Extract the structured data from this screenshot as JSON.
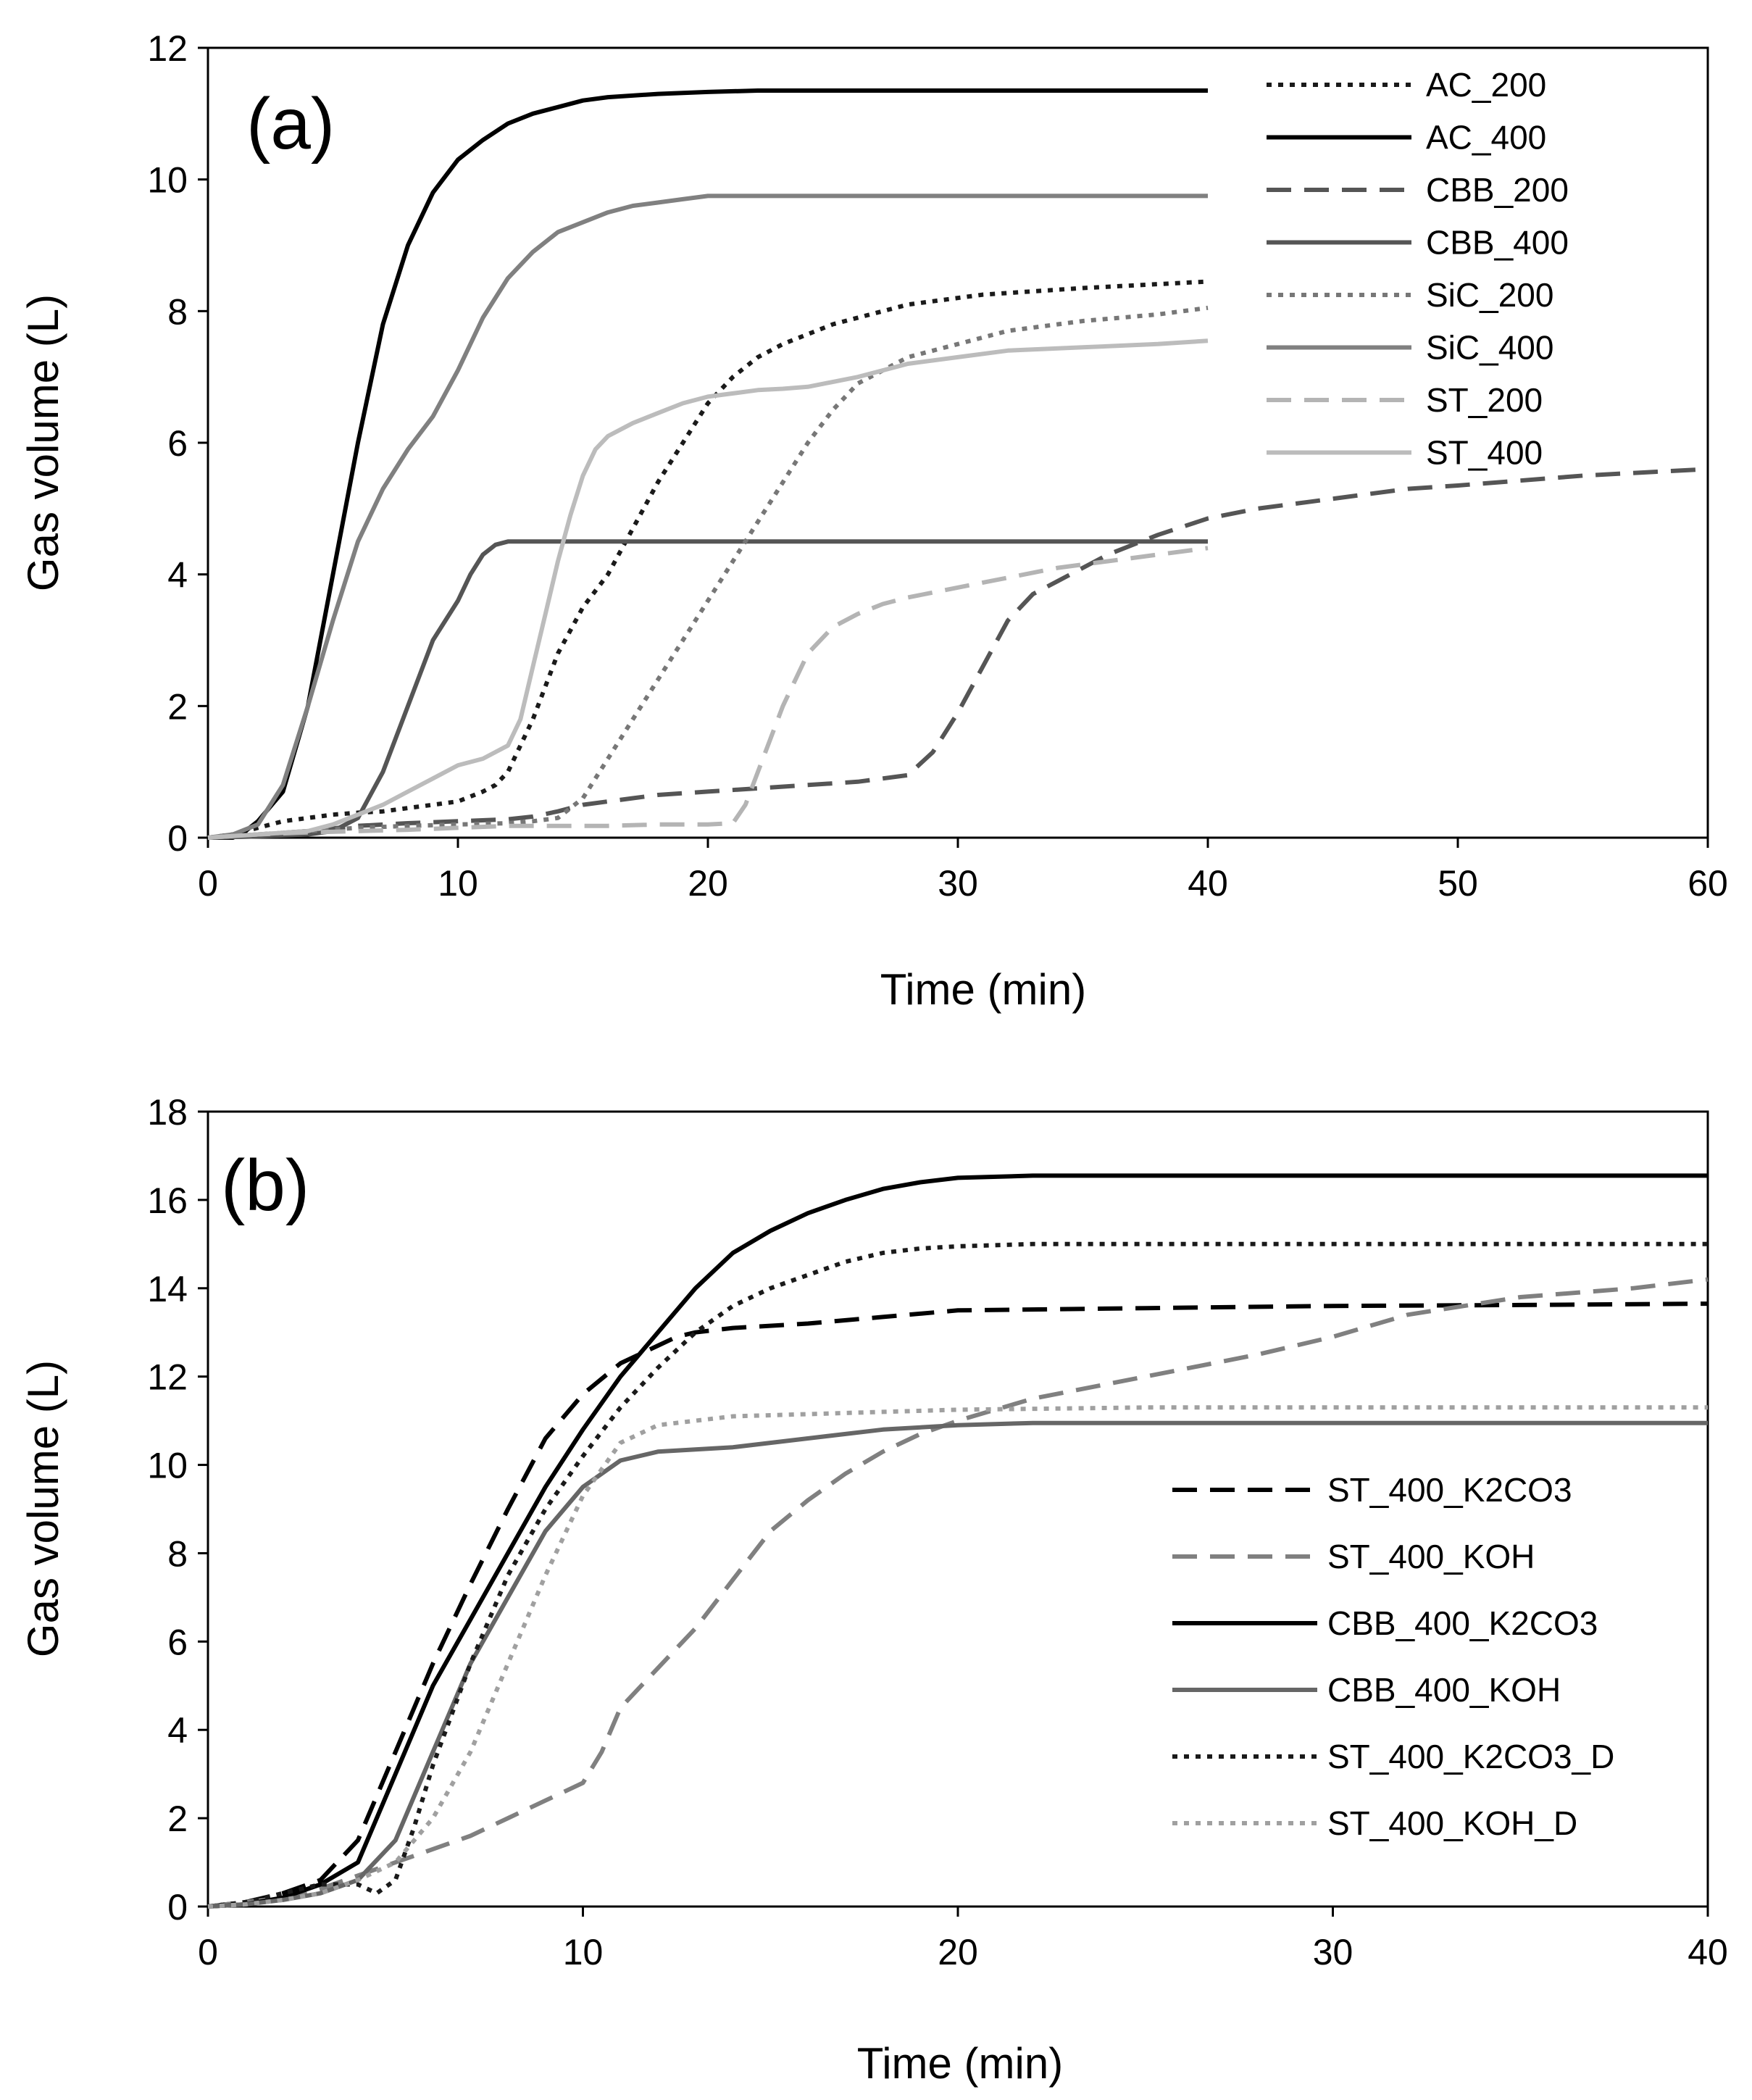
{
  "chart_data": [
    {
      "type": "line",
      "panel_label": "(a)",
      "xlabel": "Time (min)",
      "ylabel": "Gas volume (L)",
      "xlim": [
        0,
        60
      ],
      "ylim": [
        0,
        12
      ],
      "xticks": [
        0,
        10,
        20,
        30,
        40,
        50,
        60
      ],
      "yticks": [
        0,
        2,
        4,
        6,
        8,
        10,
        12
      ],
      "legend_position": "top-right",
      "series": [
        {
          "name": "AC_200",
          "color": "#1a1a1a",
          "dash": "dot",
          "x": [
            0,
            1,
            2,
            3,
            4,
            5,
            6,
            7,
            8,
            9,
            10,
            11,
            11.5,
            12,
            13,
            14,
            15,
            16,
            17,
            18,
            19,
            20,
            21,
            22,
            23,
            25,
            28,
            31,
            35,
            40
          ],
          "y": [
            0,
            0.05,
            0.15,
            0.25,
            0.3,
            0.35,
            0.38,
            0.4,
            0.45,
            0.5,
            0.55,
            0.7,
            0.8,
            1.0,
            1.8,
            2.8,
            3.5,
            4.0,
            4.7,
            5.4,
            6.0,
            6.6,
            7.0,
            7.3,
            7.5,
            7.8,
            8.1,
            8.25,
            8.35,
            8.45
          ]
        },
        {
          "name": "AC_400",
          "color": "#000000",
          "dash": "solid",
          "x": [
            0,
            1,
            1.5,
            2,
            3,
            4,
            5,
            6,
            7,
            8,
            9,
            10,
            11,
            12,
            13,
            14,
            15,
            16,
            18,
            20,
            22,
            25,
            30,
            35,
            40
          ],
          "y": [
            0,
            0,
            0.1,
            0.25,
            0.7,
            2.0,
            4.0,
            6.0,
            7.8,
            9.0,
            9.8,
            10.3,
            10.6,
            10.85,
            11.0,
            11.1,
            11.2,
            11.25,
            11.3,
            11.33,
            11.35,
            11.35,
            11.35,
            11.35,
            11.35
          ]
        },
        {
          "name": "CBB_200",
          "color": "#555555",
          "dash": "dash",
          "x": [
            0,
            2,
            4,
            6,
            8,
            10,
            12,
            13,
            14,
            15,
            16,
            17,
            18,
            20,
            22,
            24,
            26,
            28,
            29,
            30,
            31,
            32,
            33,
            34,
            35,
            36,
            38,
            40,
            42,
            44,
            46,
            48,
            50,
            55,
            60
          ],
          "y": [
            0,
            0.05,
            0.1,
            0.18,
            0.22,
            0.25,
            0.28,
            0.32,
            0.4,
            0.5,
            0.55,
            0.6,
            0.65,
            0.7,
            0.75,
            0.8,
            0.85,
            0.95,
            1.3,
            1.9,
            2.6,
            3.3,
            3.7,
            3.9,
            4.1,
            4.3,
            4.6,
            4.85,
            5.0,
            5.1,
            5.2,
            5.3,
            5.35,
            5.5,
            5.6
          ]
        },
        {
          "name": "CBB_400",
          "color": "#555555",
          "dash": "solid",
          "x": [
            0,
            2,
            4,
            5,
            6,
            7,
            8,
            9,
            10,
            10.5,
            11,
            11.5,
            12,
            14,
            16,
            20,
            25,
            30,
            35,
            40
          ],
          "y": [
            0,
            0.02,
            0.05,
            0.1,
            0.3,
            1.0,
            2.0,
            3.0,
            3.6,
            4.0,
            4.3,
            4.45,
            4.5,
            4.5,
            4.5,
            4.5,
            4.5,
            4.5,
            4.5,
            4.5
          ]
        },
        {
          "name": "SiC_200",
          "color": "#777777",
          "dash": "dot",
          "x": [
            0,
            2,
            4,
            6,
            8,
            10,
            12,
            13,
            14,
            15,
            16,
            17,
            18,
            19,
            20,
            21,
            22,
            23,
            24,
            25,
            26,
            27,
            28,
            30,
            32,
            35,
            38,
            40
          ],
          "y": [
            0,
            0.05,
            0.1,
            0.15,
            0.18,
            0.2,
            0.22,
            0.25,
            0.3,
            0.6,
            1.2,
            1.8,
            2.4,
            3.0,
            3.6,
            4.2,
            4.8,
            5.4,
            6.0,
            6.5,
            6.9,
            7.1,
            7.3,
            7.5,
            7.7,
            7.85,
            7.95,
            8.05
          ]
        },
        {
          "name": "SiC_400",
          "color": "#808080",
          "dash": "solid",
          "x": [
            0,
            1,
            2,
            3,
            4,
            5,
            6,
            7,
            8,
            9,
            10,
            11,
            12,
            13,
            14,
            15,
            16,
            17,
            18,
            19,
            20,
            21,
            22,
            25,
            30,
            35,
            40
          ],
          "y": [
            0,
            0.05,
            0.2,
            0.8,
            2.0,
            3.3,
            4.5,
            5.3,
            5.9,
            6.4,
            7.1,
            7.9,
            8.5,
            8.9,
            9.2,
            9.35,
            9.5,
            9.6,
            9.65,
            9.7,
            9.75,
            9.75,
            9.75,
            9.75,
            9.75,
            9.75,
            9.75
          ]
        },
        {
          "name": "ST_200",
          "color": "#b4b4b4",
          "dash": "dash",
          "x": [
            0,
            2,
            4,
            6,
            8,
            10,
            12,
            14,
            16,
            18,
            20,
            21,
            21.5,
            22,
            23,
            24,
            25,
            26,
            27,
            28,
            30,
            32,
            34,
            36,
            38,
            40
          ],
          "y": [
            0,
            0.05,
            0.08,
            0.1,
            0.12,
            0.15,
            0.18,
            0.18,
            0.18,
            0.2,
            0.2,
            0.22,
            0.5,
            1.0,
            2.0,
            2.8,
            3.2,
            3.4,
            3.55,
            3.65,
            3.8,
            3.95,
            4.1,
            4.2,
            4.3,
            4.4
          ]
        },
        {
          "name": "ST_400",
          "color": "#bcbcbc",
          "dash": "solid",
          "x": [
            0,
            2,
            4,
            5,
            6,
            7,
            8,
            9,
            10,
            11,
            11.5,
            12,
            12.5,
            13,
            13.5,
            14,
            14.5,
            15,
            15.5,
            16,
            16.5,
            17,
            18,
            19,
            20,
            21,
            22,
            23,
            24,
            26,
            28,
            30,
            32,
            35,
            38,
            40
          ],
          "y": [
            0,
            0.05,
            0.1,
            0.2,
            0.35,
            0.5,
            0.7,
            0.9,
            1.1,
            1.2,
            1.3,
            1.4,
            1.8,
            2.6,
            3.4,
            4.2,
            4.9,
            5.5,
            5.9,
            6.1,
            6.2,
            6.3,
            6.45,
            6.6,
            6.7,
            6.75,
            6.8,
            6.82,
            6.85,
            7.0,
            7.2,
            7.3,
            7.4,
            7.45,
            7.5,
            7.55
          ]
        }
      ]
    },
    {
      "type": "line",
      "panel_label": "(b)",
      "xlabel": "Time (min)",
      "ylabel": "Gas volume (L)",
      "xlim": [
        0,
        40
      ],
      "ylim": [
        0,
        18
      ],
      "xticks": [
        0,
        10,
        20,
        30,
        40
      ],
      "yticks": [
        0,
        2,
        4,
        6,
        8,
        10,
        12,
        14,
        16,
        18
      ],
      "legend_position": "center-right",
      "series": [
        {
          "name": "ST_400_K2CO3",
          "color": "#000000",
          "dash": "dash",
          "x": [
            0,
            1,
            2,
            3,
            4,
            5,
            6,
            7,
            8,
            9,
            10,
            11,
            12,
            12.5,
            13,
            14,
            16,
            18,
            20,
            25,
            30,
            35,
            40
          ],
          "y": [
            0,
            0.1,
            0.3,
            0.6,
            1.5,
            3.5,
            5.5,
            7.3,
            9.0,
            10.6,
            11.6,
            12.3,
            12.7,
            12.9,
            13.0,
            13.1,
            13.2,
            13.35,
            13.5,
            13.55,
            13.6,
            13.62,
            13.65
          ]
        },
        {
          "name": "ST_400_KOH",
          "color": "#808080",
          "dash": "dash",
          "x": [
            0,
            1,
            2,
            3,
            4,
            5,
            6,
            7,
            8,
            9,
            10,
            10.5,
            11,
            12,
            13,
            14,
            15,
            16,
            17,
            18,
            19,
            20,
            22,
            25,
            28,
            30,
            32,
            35,
            38,
            40
          ],
          "y": [
            0,
            0.1,
            0.2,
            0.4,
            0.7,
            1.0,
            1.3,
            1.6,
            2.0,
            2.4,
            2.8,
            3.5,
            4.5,
            5.4,
            6.3,
            7.4,
            8.5,
            9.2,
            9.8,
            10.3,
            10.7,
            11.0,
            11.5,
            12.0,
            12.5,
            12.9,
            13.4,
            13.8,
            14.0,
            14.2
          ]
        },
        {
          "name": "CBB_400_K2CO3",
          "color": "#000000",
          "dash": "solid",
          "x": [
            0,
            1,
            2,
            3,
            4,
            5,
            6,
            7,
            8,
            9,
            10,
            11,
            12,
            13,
            14,
            15,
            16,
            17,
            18,
            19,
            20,
            22,
            25,
            30,
            35,
            40
          ],
          "y": [
            0,
            0.05,
            0.2,
            0.5,
            1.0,
            3.0,
            5.0,
            6.5,
            8.0,
            9.5,
            10.8,
            12.0,
            13.0,
            14.0,
            14.8,
            15.3,
            15.7,
            16.0,
            16.25,
            16.4,
            16.5,
            16.55,
            16.55,
            16.55,
            16.55,
            16.55
          ]
        },
        {
          "name": "CBB_400_KOH",
          "color": "#666666",
          "dash": "solid",
          "x": [
            0,
            1,
            2,
            3,
            4,
            5,
            6,
            7,
            8,
            9,
            10,
            11,
            12,
            13,
            14,
            16,
            18,
            20,
            22,
            25,
            30,
            35,
            40
          ],
          "y": [
            0,
            0.05,
            0.15,
            0.3,
            0.6,
            1.5,
            3.5,
            5.5,
            7.0,
            8.5,
            9.5,
            10.1,
            10.3,
            10.35,
            10.4,
            10.6,
            10.8,
            10.9,
            10.95,
            10.95,
            10.95,
            10.95,
            10.95
          ]
        },
        {
          "name": "ST_400_K2CO3_D",
          "color": "#1a1a1a",
          "dash": "dot",
          "x": [
            0,
            1,
            2,
            3,
            4,
            4.5,
            5,
            5.5,
            6,
            7,
            8,
            9,
            10,
            11,
            12,
            13,
            14,
            15,
            16,
            17,
            18,
            19,
            20,
            22,
            25,
            30,
            35,
            40
          ],
          "y": [
            0,
            0.1,
            0.3,
            0.5,
            0.5,
            0.3,
            0.6,
            1.8,
            3.2,
            5.5,
            7.5,
            9.0,
            10.2,
            11.3,
            12.2,
            13.0,
            13.6,
            14.0,
            14.3,
            14.6,
            14.8,
            14.9,
            14.95,
            15.0,
            15.0,
            15.0,
            15.0,
            15.0
          ]
        },
        {
          "name": "ST_400_KOH_D",
          "color": "#a0a0a0",
          "dash": "dot",
          "x": [
            0,
            1,
            2,
            3,
            4,
            5,
            6,
            7,
            8,
            9,
            10,
            11,
            12,
            13,
            14,
            16,
            18,
            20,
            25,
            30,
            35,
            40
          ],
          "y": [
            0,
            0.05,
            0.15,
            0.3,
            0.6,
            1.0,
            2.0,
            3.5,
            5.5,
            7.5,
            9.3,
            10.5,
            10.9,
            11.0,
            11.1,
            11.15,
            11.2,
            11.25,
            11.3,
            11.3,
            11.3,
            11.3
          ]
        }
      ]
    }
  ]
}
